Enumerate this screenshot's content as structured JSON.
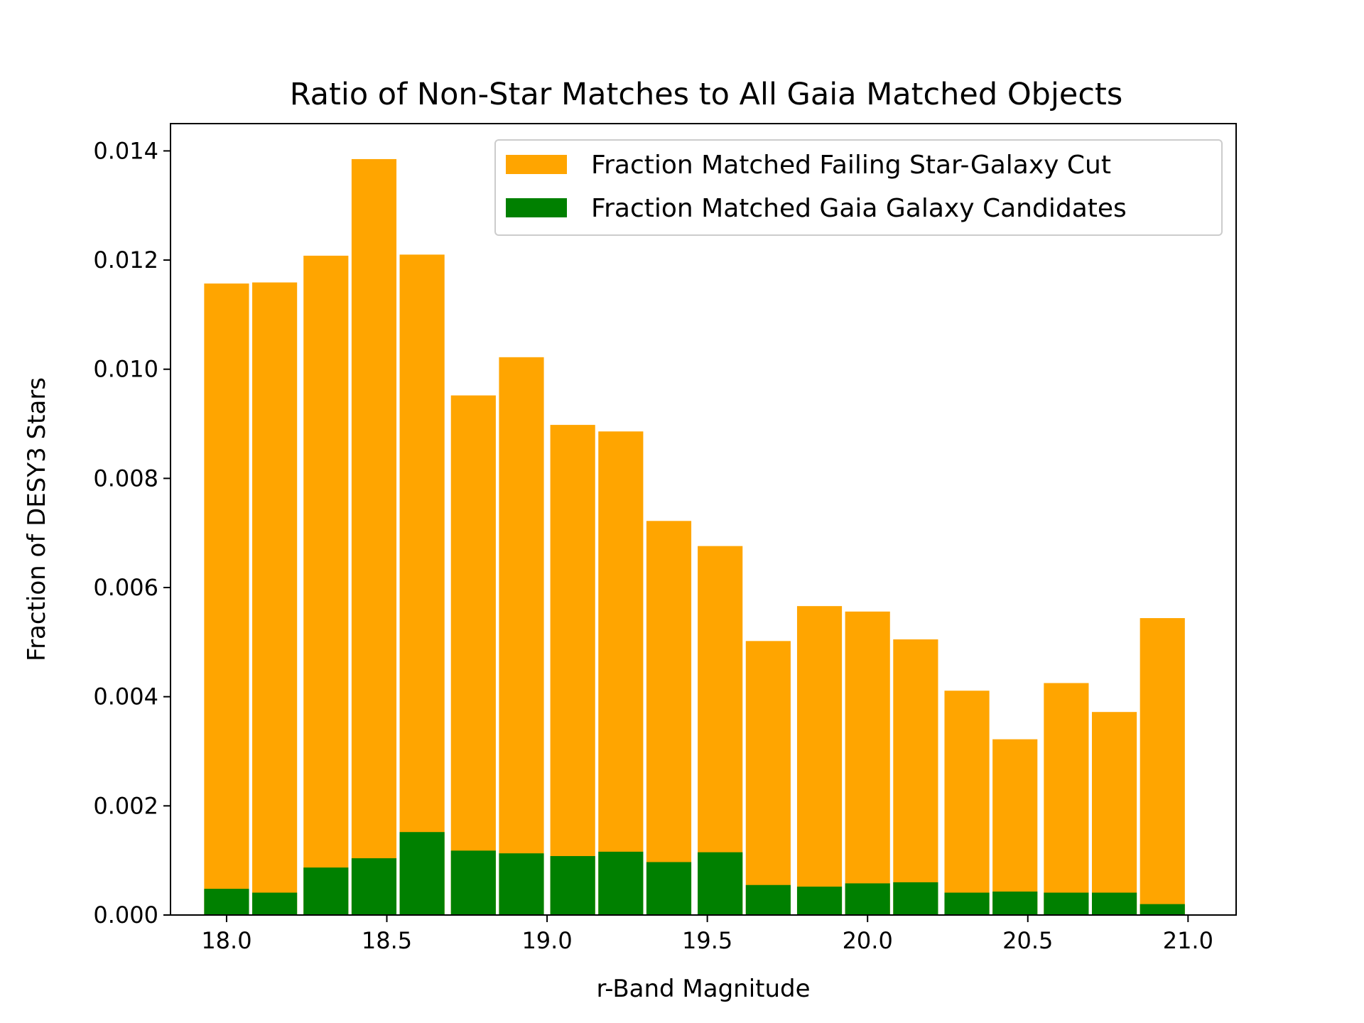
{
  "chart_data": {
    "type": "bar",
    "stacking": "overlay",
    "title": "Ratio of Non-Star Matches to All Gaia Matched Objects",
    "xlabel": "r-Band Magnitude",
    "ylabel": "Fraction of DESY3 Stars",
    "xlim": [
      17.825,
      21.15
    ],
    "ylim": [
      0,
      0.0145
    ],
    "xticks": [
      "18.0",
      "18.5",
      "19.0",
      "19.5",
      "20.0",
      "20.5",
      "21.0"
    ],
    "yticks": [
      "0.000",
      "0.002",
      "0.004",
      "0.006",
      "0.008",
      "0.010",
      "0.012",
      "0.014"
    ],
    "bin_width": 0.14,
    "x": [
      18.0,
      18.15,
      18.31,
      18.46,
      18.61,
      18.77,
      18.92,
      19.08,
      19.23,
      19.38,
      19.54,
      19.69,
      19.85,
      20.0,
      20.15,
      20.31,
      20.46,
      20.62,
      20.77,
      20.92
    ],
    "legend_position": "top-right",
    "grid": false,
    "series": [
      {
        "name": "Fraction Matched Failing Star-Galaxy Cut",
        "color": "#ffa500",
        "values": [
          0.01157,
          0.01159,
          0.01208,
          0.01385,
          0.0121,
          0.00952,
          0.01022,
          0.00898,
          0.00886,
          0.00722,
          0.00676,
          0.00502,
          0.00566,
          0.00556,
          0.00505,
          0.00411,
          0.00322,
          0.00425,
          0.00372,
          0.00544
        ]
      },
      {
        "name": "Fraction Matched Gaia Galaxy Candidates",
        "color": "#008000",
        "values": [
          0.00048,
          0.00041,
          0.00087,
          0.00104,
          0.00152,
          0.00118,
          0.00113,
          0.00108,
          0.00116,
          0.00097,
          0.00115,
          0.00055,
          0.00052,
          0.00058,
          0.0006,
          0.00041,
          0.00043,
          0.00041,
          0.00041,
          0.0002
        ]
      }
    ]
  }
}
